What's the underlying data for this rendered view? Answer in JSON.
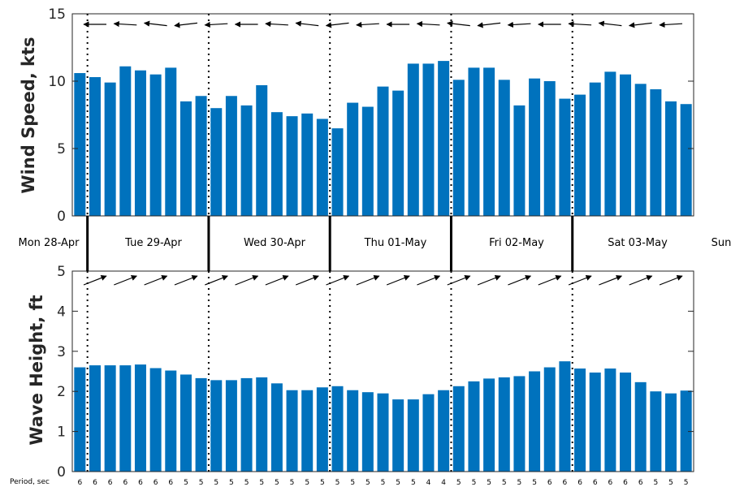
{
  "chart_data": [
    {
      "type": "bar",
      "ylabel": "Wind Speed, kts",
      "ylim": [
        0,
        15
      ],
      "yticks": [
        0,
        5,
        10,
        15
      ],
      "color": "#0072BD",
      "values": [
        10.6,
        10.3,
        9.9,
        11.1,
        10.8,
        10.5,
        11.0,
        8.5,
        8.9,
        8.0,
        8.9,
        8.2,
        9.7,
        7.7,
        7.4,
        7.6,
        7.2,
        6.5,
        8.4,
        8.1,
        9.6,
        9.3,
        11.3,
        11.3,
        11.5,
        10.1,
        11.0,
        11.0,
        10.1,
        8.2,
        10.2,
        10.0,
        8.7,
        9.0,
        9.9,
        10.7,
        10.5,
        9.8,
        9.4,
        8.5,
        8.3
      ],
      "direction_arrows": "pointing left (westward)",
      "grid": false
    },
    {
      "type": "bar",
      "ylabel": "Wave Height, ft",
      "ylim": [
        0,
        5
      ],
      "yticks": [
        0,
        1,
        2,
        3,
        4,
        5
      ],
      "color": "#0072BD",
      "values": [
        2.6,
        2.65,
        2.65,
        2.65,
        2.67,
        2.58,
        2.52,
        2.42,
        2.33,
        2.28,
        2.28,
        2.33,
        2.35,
        2.2,
        2.03,
        2.03,
        2.1,
        2.13,
        2.03,
        1.98,
        1.95,
        1.8,
        1.8,
        1.93,
        2.03,
        2.13,
        2.25,
        2.32,
        2.35,
        2.38,
        2.5,
        2.6,
        2.75,
        2.57,
        2.47,
        2.57,
        2.47,
        2.23,
        2.0,
        1.95,
        2.02
      ],
      "direction_arrows": "pointing up-right (northeastward)",
      "grid": false
    }
  ],
  "days": [
    "Mon 28-Apr",
    "Tue 29-Apr",
    "Wed 30-Apr",
    "Thu 01-May",
    "Fri 02-May",
    "Sat 03-May",
    "Sun"
  ],
  "period_label": "Period, sec",
  "periods": [
    "6",
    "6",
    "6",
    "6",
    "6",
    "6",
    "6",
    "5",
    "5",
    "5",
    "5",
    "5",
    "5",
    "5",
    "5",
    "5",
    "5",
    "5",
    "5",
    "5",
    "5",
    "5",
    "5",
    "4",
    "4",
    "5",
    "5",
    "5",
    "5",
    "5",
    "5",
    "6",
    "6",
    "6",
    "6",
    "6",
    "6",
    "6",
    "5",
    "5",
    "5"
  ],
  "colors": {
    "bar": "#0072BD",
    "axis": "#262626",
    "divider": "#000000"
  }
}
